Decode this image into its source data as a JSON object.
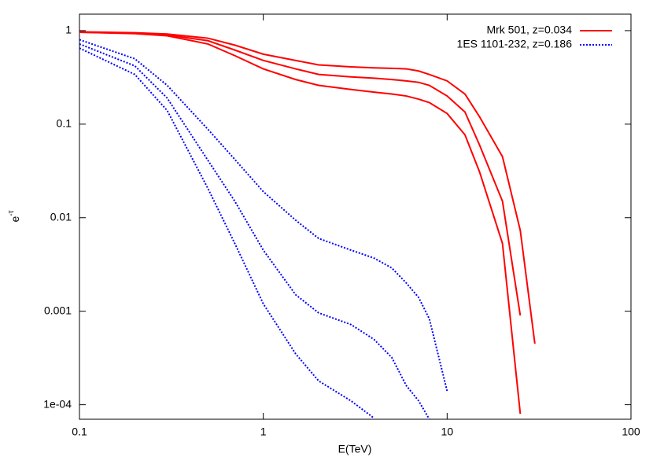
{
  "chart_data": {
    "type": "line",
    "x_label": "E(TeV)",
    "y_label": {
      "base": "e",
      "superscript": "-τ"
    },
    "log_x": true,
    "log_y": true,
    "xlim": [
      0.1,
      100
    ],
    "ylim": [
      7e-05,
      1.5
    ],
    "xticks": [
      0.1,
      1,
      10,
      100
    ],
    "yticks": [
      1,
      0.1,
      0.01,
      0.001,
      {
        "value": 0.0001,
        "label": "1e-04"
      }
    ],
    "legend": "top-right",
    "x": [
      0.1,
      0.2,
      0.3,
      0.5,
      0.7,
      1,
      1.5,
      2,
      3,
      4,
      5,
      6,
      7,
      8,
      10,
      12.5,
      15,
      20,
      25,
      30
    ],
    "series": [
      {
        "name": "Mrk 501, z=0.034",
        "color": "#ff0000",
        "dash": "solid",
        "values": [
          0.97,
          0.95,
          0.92,
          0.83,
          0.7,
          0.56,
          0.48,
          0.43,
          0.41,
          0.4,
          0.395,
          0.39,
          0.37,
          0.34,
          0.29,
          0.21,
          0.12,
          0.045,
          0.0073,
          0.00045
        ]
      },
      {
        "color": "#ff0000",
        "dash": "solid",
        "values": [
          0.96,
          0.94,
          0.9,
          0.78,
          0.62,
          0.48,
          0.39,
          0.34,
          0.32,
          0.31,
          0.3,
          0.29,
          0.28,
          0.26,
          0.2,
          0.135,
          0.06,
          0.015,
          0.0009,
          null
        ]
      },
      {
        "color": "#ff0000",
        "dash": "solid",
        "values": [
          0.96,
          0.93,
          0.88,
          0.72,
          0.54,
          0.39,
          0.3,
          0.26,
          0.235,
          0.22,
          0.21,
          0.2,
          0.185,
          0.17,
          0.13,
          0.077,
          0.031,
          0.0053,
          8e-05,
          null
        ]
      },
      {
        "name": "1ES 1101-232, z=0.186",
        "color": "#0000ff",
        "dash": "dotted",
        "values": [
          0.8,
          0.5,
          0.26,
          0.088,
          0.042,
          0.019,
          0.0094,
          0.006,
          0.0045,
          0.0037,
          0.0029,
          0.002,
          0.0014,
          0.00083,
          0.00014,
          null,
          null,
          null,
          null,
          null
        ]
      },
      {
        "color": "#0000ff",
        "dash": "dotted",
        "values": [
          0.72,
          0.42,
          0.19,
          0.041,
          0.015,
          0.0045,
          0.0015,
          0.00096,
          0.00072,
          0.0005,
          0.00032,
          0.00016,
          0.00011,
          7e-05,
          null,
          null,
          null,
          null,
          null,
          null
        ]
      },
      {
        "color": "#0000ff",
        "dash": "dotted",
        "values": [
          0.65,
          0.34,
          0.14,
          0.0205,
          0.0053,
          0.0012,
          0.00035,
          0.00018,
          0.00011,
          7.2e-05,
          null,
          null,
          null,
          null,
          null,
          null,
          null,
          null,
          null,
          null
        ]
      }
    ]
  }
}
